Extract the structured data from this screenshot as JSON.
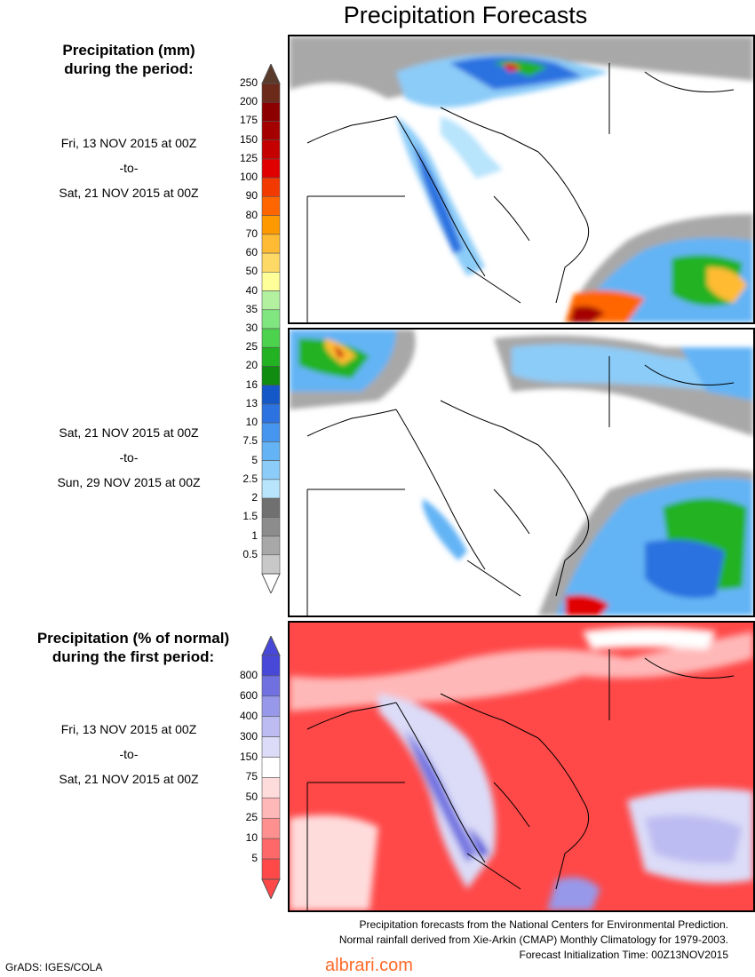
{
  "title": "Precipitation Forecasts",
  "panel1": {
    "heading_line1": "Precipitation (mm)",
    "heading_line2": "during the period:",
    "start": "Fri, 13 NOV 2015 at 00Z",
    "sep": "-to-",
    "end": "Sat, 21 NOV 2015 at 00Z"
  },
  "panel2": {
    "start": "Sat, 21 NOV 2015 at 00Z",
    "sep": "-to-",
    "end": "Sun, 29 NOV 2015 at 00Z"
  },
  "panel3": {
    "heading_line1": "Precipitation (% of normal)",
    "heading_line2": "during the first period:",
    "start": "Fri, 13 NOV 2015 at 00Z",
    "sep": "-to-",
    "end": "Sat, 21 NOV 2015 at 00Z"
  },
  "mm_scale": {
    "labels": [
      "250",
      "200",
      "175",
      "150",
      "125",
      "100",
      "90",
      "80",
      "70",
      "60",
      "50",
      "40",
      "35",
      "30",
      "25",
      "20",
      "16",
      "13",
      "10",
      "7.5",
      "5",
      "2.5",
      "2",
      "1.5",
      "1",
      "0.5"
    ],
    "colors": [
      "#6b2a1a",
      "#8c0000",
      "#a50000",
      "#c40000",
      "#e00000",
      "#f23a00",
      "#ff6600",
      "#ff9900",
      "#ffbb33",
      "#ffd966",
      "#ffff99",
      "#b3f0a0",
      "#80e680",
      "#4cd24c",
      "#22b222",
      "#108c10",
      "#1458c8",
      "#2c72e0",
      "#4696f0",
      "#64b4f5",
      "#8cccf8",
      "#b8e4fc",
      "#707070",
      "#8c8c8c",
      "#a8a8a8",
      "#c8c8c8"
    ]
  },
  "pct_scale": {
    "labels": [
      "800",
      "600",
      "400",
      "300",
      "150",
      "75",
      "50",
      "25",
      "10",
      "5"
    ],
    "colors": [
      "#4848d8",
      "#7070e0",
      "#9898ea",
      "#bcbcf2",
      "#dcdcf8",
      "#ffffff",
      "#ffdcdc",
      "#ffb8b8",
      "#ff9090",
      "#ff6868",
      "#ff4848"
    ]
  },
  "footnotes": [
    "Precipitation forecasts from the National Centers for Environmental Prediction.",
    "Normal rainfall derived from Xie-Arkin (CMAP) Monthly Climatology for 1979-2003.",
    "Forecast Initialization Time: 00Z13NOV2015"
  ],
  "credit": "GrADS: IGES/COLA",
  "watermark": "albrari.com"
}
